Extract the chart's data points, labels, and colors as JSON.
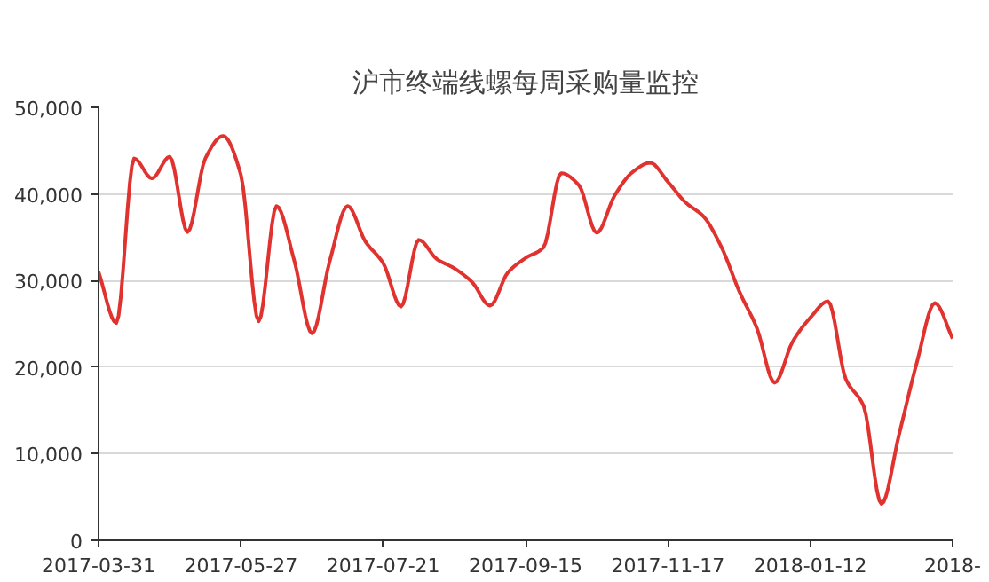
{
  "chart_data": {
    "type": "line",
    "title": "沪市终端线螺每周采购量监控",
    "categories": [
      "2017-03-31",
      null,
      null,
      null,
      null,
      null,
      null,
      null,
      "2017-05-27",
      null,
      null,
      null,
      null,
      null,
      null,
      null,
      "2017-07-21",
      null,
      null,
      null,
      null,
      null,
      null,
      null,
      "2017-09-15",
      null,
      null,
      null,
      null,
      null,
      null,
      null,
      "2017-11-17",
      null,
      null,
      null,
      null,
      null,
      null,
      null,
      "2018-01-12",
      null,
      null,
      null,
      null,
      null,
      null,
      null,
      "2018-"
    ],
    "series": [
      {
        "color": "#e0322e",
        "values": [
          31000,
          25100,
          44100,
          41800,
          44300,
          35600,
          44100,
          46700,
          42200,
          25300,
          38600,
          32300,
          23900,
          32300,
          38600,
          34500,
          32000,
          27000,
          34700,
          32500,
          31400,
          29800,
          27100,
          30900,
          32600,
          33800,
          42400,
          41000,
          35500,
          39800,
          42500,
          43600,
          41400,
          39000,
          37400,
          33900,
          28800,
          24500,
          18200,
          22900,
          25700,
          27600,
          18600,
          15500,
          4200,
          12300,
          20600,
          27400,
          23300
        ]
      }
    ],
    "ylim": [
      0,
      50000
    ],
    "yticks": [
      {
        "value": 0,
        "label": "0"
      },
      {
        "value": 10000,
        "label": "10,000"
      },
      {
        "value": 20000,
        "label": "20,000"
      },
      {
        "value": 30000,
        "label": "30,000"
      },
      {
        "value": 40000,
        "label": "40,000"
      },
      {
        "value": 50000,
        "label": "50,000"
      }
    ],
    "grid": "y",
    "line_style": "solid"
  }
}
